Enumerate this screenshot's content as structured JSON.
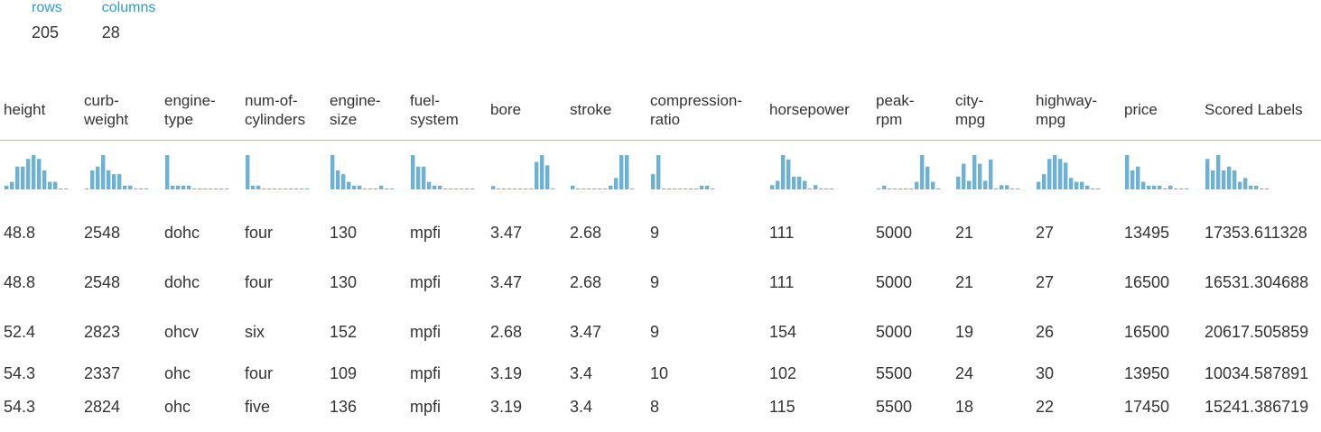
{
  "summary": {
    "rows_label": "rows",
    "rows_value": "205",
    "columns_label": "columns",
    "columns_value": "28"
  },
  "histogram_color": "#6bb2d6",
  "columns": [
    {
      "key": "height",
      "label": "height",
      "hist": [
        1,
        2,
        6,
        6,
        8,
        9,
        8,
        5,
        2,
        2,
        0,
        0
      ]
    },
    {
      "key": "curb-weight",
      "label": "curb-\nweight",
      "hist": [
        0,
        5,
        6,
        9,
        5,
        4,
        4,
        1,
        1,
        0,
        0,
        0
      ]
    },
    {
      "key": "engine-type",
      "label": "engine-\ntype",
      "hist": [
        9,
        1,
        1,
        1,
        1,
        0,
        0,
        0,
        0,
        0,
        0,
        0
      ]
    },
    {
      "key": "num-of-cylinders",
      "label": "num-of-\ncylinders",
      "hist": [
        9,
        1,
        1,
        0,
        0,
        0,
        0,
        0,
        0,
        0,
        0,
        0
      ]
    },
    {
      "key": "engine-size",
      "label": "engine-\nsize",
      "hist": [
        9,
        5,
        4,
        2,
        1,
        1,
        0,
        0,
        0,
        1,
        0,
        0
      ]
    },
    {
      "key": "fuel-system",
      "label": "fuel-\nsystem",
      "hist": [
        9,
        6,
        6,
        2,
        1,
        1,
        0,
        0,
        0,
        0,
        0,
        0
      ]
    },
    {
      "key": "bore",
      "label": "bore",
      "hist": [
        1,
        0,
        0,
        0,
        0,
        0,
        0,
        0,
        8,
        10,
        7,
        0
      ]
    },
    {
      "key": "stroke",
      "label": "stroke",
      "hist": [
        1,
        0,
        0,
        0,
        0,
        0,
        0,
        1,
        3,
        9,
        9,
        0
      ]
    },
    {
      "key": "compression-ratio",
      "label": "compression-\nratio",
      "hist": [
        4,
        9,
        0,
        0,
        0,
        0,
        0,
        0,
        0,
        1,
        1,
        0
      ]
    },
    {
      "key": "horsepower",
      "label": "horsepower",
      "hist": [
        1,
        2,
        8,
        7,
        3,
        3,
        2,
        0,
        1,
        0,
        0,
        0
      ]
    },
    {
      "key": "peak-rpm",
      "label": "peak-\nrpm",
      "hist": [
        0,
        1,
        0,
        0,
        0,
        0,
        0,
        2,
        9,
        6,
        2,
        0
      ]
    },
    {
      "key": "city-mpg",
      "label": "city-\nmpg",
      "hist": [
        3,
        6,
        2,
        8,
        6,
        2,
        7,
        0,
        1,
        1,
        0,
        0
      ]
    },
    {
      "key": "highway-mpg",
      "label": "highway-\nmpg",
      "hist": [
        2,
        4,
        8,
        9,
        8,
        7,
        3,
        2,
        2,
        1,
        0,
        0
      ]
    },
    {
      "key": "price",
      "label": "price",
      "hist": [
        9,
        5,
        6,
        2,
        1,
        1,
        1,
        0,
        1,
        0,
        0,
        0
      ]
    },
    {
      "key": "scored-labels",
      "label": "Scored Labels",
      "hist": [
        8,
        5,
        9,
        5,
        6,
        5,
        2,
        3,
        1,
        1,
        0,
        0
      ]
    }
  ],
  "rows": [
    [
      "48.8",
      "2548",
      "dohc",
      "four",
      "130",
      "mpfi",
      "3.47",
      "2.68",
      "9",
      "111",
      "5000",
      "21",
      "27",
      "13495",
      "17353.611328"
    ],
    [
      "48.8",
      "2548",
      "dohc",
      "four",
      "130",
      "mpfi",
      "3.47",
      "2.68",
      "9",
      "111",
      "5000",
      "21",
      "27",
      "16500",
      "16531.304688"
    ],
    [
      "52.4",
      "2823",
      "ohcv",
      "six",
      "152",
      "mpfi",
      "2.68",
      "3.47",
      "9",
      "154",
      "5000",
      "19",
      "26",
      "16500",
      "20617.505859"
    ],
    [
      "54.3",
      "2337",
      "ohc",
      "four",
      "109",
      "mpfi",
      "3.19",
      "3.4",
      "10",
      "102",
      "5500",
      "24",
      "30",
      "13950",
      "10034.587891"
    ],
    [
      "54.3",
      "2824",
      "ohc",
      "five",
      "136",
      "mpfi",
      "3.19",
      "3.4",
      "8",
      "115",
      "5500",
      "18",
      "22",
      "17450",
      "15241.386719"
    ]
  ]
}
